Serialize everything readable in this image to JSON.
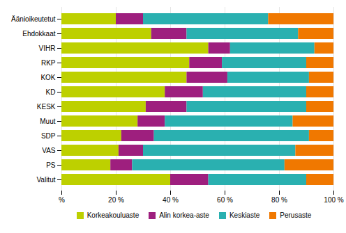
{
  "chart_data": {
    "type": "bar",
    "orientation": "horizontal",
    "stacked": true,
    "categories": [
      "Äänioikeutetut",
      "Ehdokkaat",
      "VIHR",
      "RKP",
      "KOK",
      "KD",
      "KESK",
      "Muut",
      "SDP",
      "VAS",
      "PS",
      "Valitut"
    ],
    "series": [
      {
        "name": "Korkeakouluaste",
        "color": "#bdd000",
        "values": [
          20,
          33,
          54,
          47,
          46,
          38,
          31,
          28,
          22,
          21,
          18,
          40
        ]
      },
      {
        "name": "Alin korkea-aste",
        "color": "#9e1f7e",
        "values": [
          10,
          13,
          8,
          12,
          15,
          14,
          15,
          10,
          12,
          9,
          8,
          14
        ]
      },
      {
        "name": "Keskiaste",
        "color": "#2ab0b0",
        "values": [
          46,
          41,
          31,
          31,
          30,
          38,
          44,
          47,
          57,
          56,
          56,
          36
        ]
      },
      {
        "name": "Perusaste",
        "color": "#f07800",
        "values": [
          24,
          13,
          7,
          10,
          9,
          10,
          10,
          15,
          9,
          14,
          18,
          10
        ]
      }
    ],
    "xlim": [
      0,
      100
    ],
    "xticks": [
      {
        "value": 0,
        "label": "%"
      },
      {
        "value": 20,
        "label": "20 %"
      },
      {
        "value": 40,
        "label": "40 %"
      },
      {
        "value": 60,
        "label": "60 %"
      },
      {
        "value": 80,
        "label": "80 %"
      },
      {
        "value": 100,
        "label": "100 %"
      }
    ],
    "grid": true,
    "legend": "bottom"
  }
}
